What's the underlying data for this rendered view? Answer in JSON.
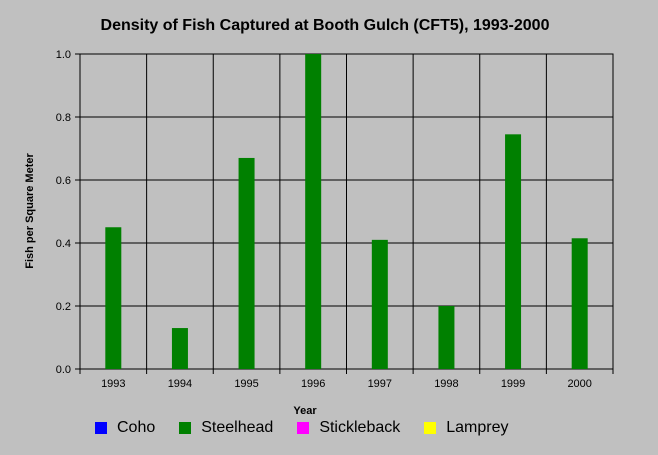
{
  "chart_data": {
    "type": "bar",
    "title": "Density of Fish Captured at Booth Gulch (CFT5), 1993-2000",
    "xlabel": "Year",
    "ylabel": "Fish per Square Meter",
    "categories": [
      "1993",
      "1994",
      "1995",
      "1996",
      "1997",
      "1998",
      "1999",
      "2000"
    ],
    "ylim": [
      0,
      1.0
    ],
    "yticks": [
      "0.0",
      "0.2",
      "0.4",
      "0.6",
      "0.8",
      "1.0"
    ],
    "grid": true,
    "legend_position": "bottom",
    "series": [
      {
        "name": "Coho",
        "color": "#0000ff",
        "values": [
          0,
          0,
          0,
          0,
          0,
          0,
          0,
          0
        ]
      },
      {
        "name": "Steelhead",
        "color": "#008000",
        "values": [
          0.45,
          0.13,
          0.67,
          1.0,
          0.41,
          0.2,
          0.745,
          0.415
        ]
      },
      {
        "name": "Stickleback",
        "color": "#ff00ff",
        "values": [
          0,
          0,
          0,
          0,
          0,
          0,
          0,
          0
        ]
      },
      {
        "name": "Lamprey",
        "color": "#ffff00",
        "values": [
          0,
          0,
          0,
          0,
          0,
          0,
          0,
          0
        ]
      }
    ]
  }
}
